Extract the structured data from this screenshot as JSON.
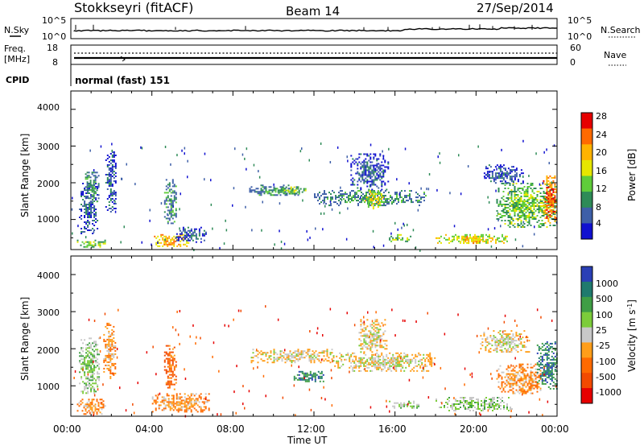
{
  "header": {
    "station": "Stokkseyri (fitACF)",
    "beam": "Beam 14",
    "date": "27/Sep/2014"
  },
  "noise_panel": {
    "left_label": "N.Sky",
    "left_ticks": [
      "10^5",
      "10^0"
    ],
    "right_ticks": [
      "10^5",
      "10^0"
    ],
    "right_label": "N.Search"
  },
  "freq_panel": {
    "left_label_1": "Freq.",
    "left_label_2": "[MHz]",
    "left_ticks": [
      "18",
      "8"
    ],
    "right_ticks": [
      "60",
      "0"
    ],
    "right_label": "Nave"
  },
  "cpid_panel": {
    "label": "CPID",
    "text": "normal (fast) 151"
  },
  "chart_data": [
    {
      "type": "heatmap",
      "title": "",
      "ylabel": "Slant Range [km]",
      "yticks": [
        "4000",
        "3000",
        "2000",
        "1000"
      ],
      "ylim": [
        180,
        4500
      ],
      "xlim_hours": [
        0,
        24
      ],
      "colorbar": {
        "label": "Power [dB]",
        "labels": [
          "28",
          "24",
          "20",
          "16",
          "12",
          "8",
          "4"
        ],
        "colors": [
          "#e60000",
          "#ff6a00",
          "#ffb300",
          "#e6e600",
          "#5fcc3a",
          "#2e8b57",
          "#3e5fa8",
          "#1010d0"
        ]
      },
      "regions": [
        {
          "t0": 0.3,
          "t1": 1.7,
          "r0": 250,
          "r1": 450,
          "level": 3
        },
        {
          "t0": 0.4,
          "t1": 1.3,
          "r0": 600,
          "r1": 2000,
          "level": 1
        },
        {
          "t0": 0.7,
          "t1": 1.4,
          "r0": 1500,
          "r1": 2300,
          "level": 2
        },
        {
          "t0": 1.7,
          "t1": 2.2,
          "r0": 1200,
          "r1": 2900,
          "level": 1
        },
        {
          "t0": 4.1,
          "t1": 5.8,
          "r0": 250,
          "r1": 600,
          "level": 5
        },
        {
          "t0": 4.6,
          "t1": 5.2,
          "r0": 900,
          "r1": 2100,
          "level": 2
        },
        {
          "t0": 5.2,
          "t1": 6.7,
          "r0": 400,
          "r1": 800,
          "level": 1
        },
        {
          "t0": 8.8,
          "t1": 11.2,
          "r0": 1650,
          "r1": 1950,
          "level": 2
        },
        {
          "t0": 10.2,
          "t1": 11.6,
          "r0": 1700,
          "r1": 1900,
          "level": 3
        },
        {
          "t0": 12.0,
          "t1": 17.5,
          "r0": 1400,
          "r1": 1800,
          "level": 2
        },
        {
          "t0": 13.8,
          "t1": 15.7,
          "r0": 1800,
          "r1": 2800,
          "level": 1
        },
        {
          "t0": 14.5,
          "t1": 15.4,
          "r0": 1300,
          "r1": 1800,
          "level": 4
        },
        {
          "t0": 15.7,
          "t1": 16.8,
          "r0": 400,
          "r1": 600,
          "level": 3
        },
        {
          "t0": 18.0,
          "t1": 21.5,
          "r0": 350,
          "r1": 600,
          "level": 4
        },
        {
          "t0": 19.2,
          "t1": 20.2,
          "r0": 350,
          "r1": 550,
          "level": 5
        },
        {
          "t0": 20.3,
          "t1": 22.3,
          "r0": 2000,
          "r1": 2500,
          "level": 1
        },
        {
          "t0": 21.0,
          "t1": 24.0,
          "r0": 800,
          "r1": 2000,
          "level": 3
        },
        {
          "t0": 23.3,
          "t1": 24.0,
          "r0": 900,
          "r1": 2200,
          "level": 6
        }
      ]
    },
    {
      "type": "heatmap",
      "title": "",
      "ylabel": "Slant Range [km]",
      "yticks": [
        "4000",
        "3000",
        "2000",
        "1000"
      ],
      "ylim": [
        180,
        4500
      ],
      "xlim_hours": [
        0,
        24
      ],
      "colorbar": {
        "label": "Velocity [m s^-1]",
        "labels": [
          "1000",
          "500",
          "100",
          "25",
          "-25",
          "-100",
          "-500",
          "-1000"
        ],
        "colors": [
          "#2a3fb5",
          "#1f7a6e",
          "#3f9e45",
          "#7ccc3a",
          "#c8c8c8",
          "#ff9e1a",
          "#ff6a00",
          "#f24a00",
          "#e60000"
        ]
      },
      "regions": [
        {
          "t0": 0.3,
          "t1": 1.7,
          "r0": 250,
          "r1": 650,
          "level": 3
        },
        {
          "t0": 0.4,
          "t1": 1.4,
          "r0": 800,
          "r1": 2300,
          "level": 5
        },
        {
          "t0": 1.6,
          "t1": 2.2,
          "r0": 1200,
          "r1": 2700,
          "level": 3
        },
        {
          "t0": 4.0,
          "t1": 6.8,
          "r0": 300,
          "r1": 800,
          "level": 3
        },
        {
          "t0": 4.6,
          "t1": 5.2,
          "r0": 900,
          "r1": 2100,
          "level": 2
        },
        {
          "t0": 8.8,
          "t1": 13.0,
          "r0": 1650,
          "r1": 2000,
          "level": 4
        },
        {
          "t0": 11.0,
          "t1": 12.5,
          "r0": 1100,
          "r1": 1400,
          "level": 7
        },
        {
          "t0": 13.0,
          "t1": 18.0,
          "r0": 1400,
          "r1": 1900,
          "level": 4
        },
        {
          "t0": 14.2,
          "t1": 15.6,
          "r0": 1900,
          "r1": 2800,
          "level": 4
        },
        {
          "t0": 15.7,
          "t1": 17.2,
          "r0": 400,
          "r1": 600,
          "level": 5
        },
        {
          "t0": 18.0,
          "t1": 21.8,
          "r0": 350,
          "r1": 700,
          "level": 5
        },
        {
          "t0": 20.2,
          "t1": 22.6,
          "r0": 1900,
          "r1": 2500,
          "level": 4
        },
        {
          "t0": 21.0,
          "t1": 23.2,
          "r0": 800,
          "r1": 1600,
          "level": 3
        },
        {
          "t0": 23.0,
          "t1": 24.0,
          "r0": 900,
          "r1": 2200,
          "level": 7
        }
      ]
    }
  ],
  "x_axis": {
    "tick_labels": [
      "00:00",
      "04:00",
      "08:00",
      "12:00",
      "16:00",
      "20:00",
      "00:00"
    ],
    "label": "Time UT"
  }
}
